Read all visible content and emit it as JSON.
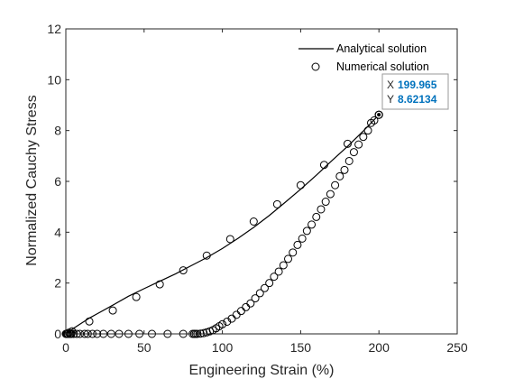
{
  "chart_data": {
    "type": "line",
    "xlabel": "Engineering Strain (%)",
    "ylabel": "Normalized Cauchy Stress",
    "xlim": [
      0,
      250
    ],
    "ylim": [
      0,
      12
    ],
    "xticks": [
      "0",
      "50",
      "100",
      "150",
      "200",
      "250"
    ],
    "yticks": [
      "0",
      "2",
      "4",
      "6",
      "8",
      "10",
      "12"
    ],
    "legend_position": "top-right",
    "series": [
      {
        "name": "Analytical solution",
        "style": "line",
        "color": "#000000",
        "x": [
          0,
          5,
          10,
          15,
          20,
          30,
          40,
          50,
          60,
          70,
          80,
          90,
          100,
          110,
          120,
          130,
          140,
          150,
          160,
          170,
          180,
          190,
          200
        ],
        "y": [
          0,
          0.22,
          0.42,
          0.62,
          0.79,
          1.13,
          1.48,
          1.78,
          2.07,
          2.36,
          2.68,
          3.0,
          3.36,
          3.76,
          4.19,
          4.66,
          5.17,
          5.69,
          6.24,
          6.82,
          7.38,
          7.98,
          8.62
        ]
      },
      {
        "name": "Numerical solution (loading)",
        "style": "marker",
        "color": "#000000",
        "x": [
          0,
          2,
          4,
          15,
          30,
          45,
          60,
          75,
          90,
          105,
          120,
          135,
          150,
          165,
          180,
          195,
          200
        ],
        "y": [
          0,
          0.05,
          0.1,
          0.49,
          0.92,
          1.45,
          1.95,
          2.5,
          3.08,
          3.73,
          4.42,
          5.1,
          5.85,
          6.65,
          7.48,
          8.3,
          8.62
        ]
      },
      {
        "name": "Numerical solution (unloading)",
        "style": "marker",
        "color": "#000000",
        "x": [
          200,
          197,
          193,
          190,
          187,
          184,
          181,
          178,
          175,
          172,
          169,
          166,
          163,
          160,
          157,
          154,
          151,
          148,
          145,
          142,
          139,
          136,
          133,
          130,
          127,
          124,
          121,
          118,
          115,
          112,
          109,
          106,
          103,
          100,
          98,
          96,
          94,
          92,
          90,
          88,
          86,
          84,
          83,
          82,
          81
        ],
        "y": [
          8.62,
          8.4,
          8.0,
          7.75,
          7.45,
          7.15,
          6.8,
          6.45,
          6.2,
          5.85,
          5.5,
          5.2,
          4.9,
          4.6,
          4.3,
          4.05,
          3.75,
          3.5,
          3.2,
          2.95,
          2.7,
          2.45,
          2.25,
          2.0,
          1.8,
          1.6,
          1.4,
          1.2,
          1.05,
          0.9,
          0.75,
          0.6,
          0.48,
          0.38,
          0.3,
          0.22,
          0.15,
          0.1,
          0.06,
          0.03,
          0.01,
          0.0,
          0.0,
          0.0,
          0.0
        ]
      },
      {
        "name": "Numerical solution (zero)",
        "style": "marker",
        "color": "#000000",
        "x": [
          0.5,
          1,
          1.5,
          2.5,
          3,
          3.5,
          5,
          7,
          9,
          12,
          14,
          17,
          20,
          24,
          29,
          34,
          40,
          47,
          55,
          65,
          75,
          82
        ],
        "y": [
          0,
          0,
          0,
          0,
          0,
          0,
          0,
          0,
          0,
          0,
          0,
          0,
          0,
          0,
          0,
          0,
          0,
          0,
          0,
          0,
          0,
          0
        ]
      }
    ],
    "legend": {
      "entries": [
        {
          "label": "Analytical solution",
          "marker": "line"
        },
        {
          "label": "Numerical solution",
          "marker": "circle"
        }
      ]
    },
    "datatip": {
      "x_label": "X",
      "x_value": "199.965",
      "y_label": "Y",
      "y_value": "8.62134",
      "value_color": "#0072BD",
      "x": 199.965,
      "y": 8.62134
    }
  }
}
